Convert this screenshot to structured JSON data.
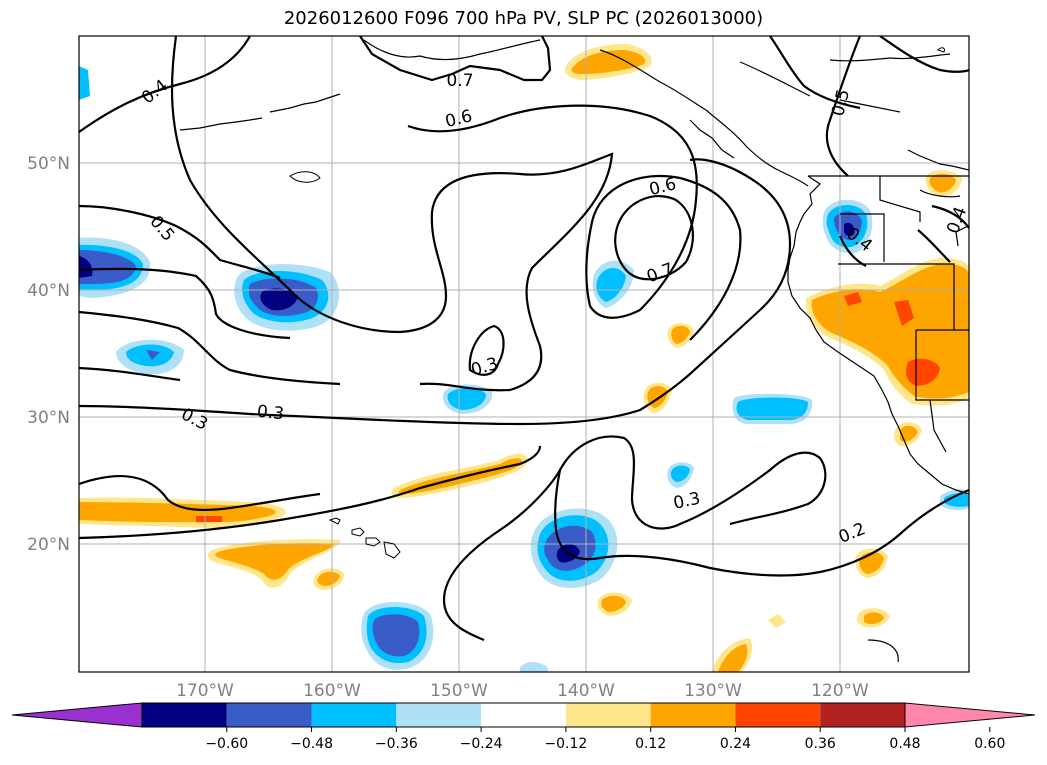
{
  "title": "2026012600 F096 700 hPa PV, SLP PC (2026013000)",
  "lat_labels": [
    "50°N",
    "40°N",
    "30°N",
    "20°N"
  ],
  "lon_labels": [
    "170°W",
    "160°W",
    "150°W",
    "140°W",
    "130°W",
    "120°W"
  ],
  "contour_labels": [
    "0.4",
    "0.7",
    "0.6",
    "0.5",
    "0.5",
    "0.6",
    "0.7",
    "0.3",
    "0.3",
    "0.3",
    "0.3",
    "0.2",
    "0.4",
    "0.4"
  ],
  "colorbar": {
    "ticks": [
      "−0.60",
      "−0.48",
      "−0.36",
      "−0.24",
      "−0.12",
      "0.12",
      "0.24",
      "0.36",
      "0.48",
      "0.60"
    ],
    "colors": [
      "#9b30d0",
      "#000080",
      "#3a5cc8",
      "#00bfff",
      "#aee0f8",
      "#ffffff",
      "#ffe68a",
      "#ffa500",
      "#ff4500",
      "#b22222",
      "#ff88aa"
    ]
  },
  "colors": {
    "contour": "#000000",
    "coast": "#000000",
    "grid": "#b0b0b0"
  }
}
